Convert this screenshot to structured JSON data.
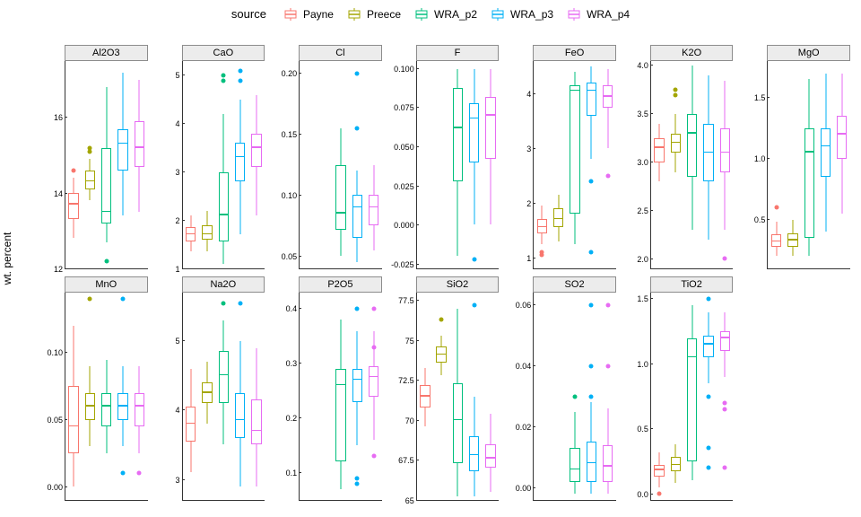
{
  "legend_title": "source",
  "y_axis_label": "wt. percent",
  "sources": [
    {
      "name": "Payne",
      "color": "#F8766D"
    },
    {
      "name": "Preece",
      "color": "#A3A500"
    },
    {
      "name": "WRA_p2",
      "color": "#00BF7D"
    },
    {
      "name": "WRA_p3",
      "color": "#00B0F6"
    },
    {
      "name": "WRA_p4",
      "color": "#E76BF3"
    }
  ],
  "panel_style": {
    "title_bg": "#ececec",
    "title_border": "#8c8c8c",
    "axis_color": "#333333",
    "title_fontsize": 11,
    "tick_fontsize": 9
  },
  "panels": [
    {
      "label": "Al2O3",
      "ylim": [
        12,
        17.5
      ],
      "yticks": [
        12,
        14,
        16
      ],
      "series": [
        {
          "src": 0,
          "q1": 13.3,
          "median": 13.7,
          "q3": 14.0,
          "lw": 12.8,
          "uw": 14.4,
          "outliers": [
            14.6
          ]
        },
        {
          "src": 1,
          "q1": 14.1,
          "median": 14.3,
          "q3": 14.6,
          "lw": 13.8,
          "uw": 14.9,
          "outliers": [
            15.1,
            15.2
          ]
        },
        {
          "src": 2,
          "q1": 13.2,
          "median": 13.5,
          "q3": 15.2,
          "lw": 12.7,
          "uw": 16.8,
          "outliers": [
            12.2
          ]
        },
        {
          "src": 3,
          "q1": 14.6,
          "median": 15.3,
          "q3": 15.7,
          "lw": 13.4,
          "uw": 17.2,
          "outliers": []
        },
        {
          "src": 4,
          "q1": 14.7,
          "median": 15.2,
          "q3": 15.9,
          "lw": 13.5,
          "uw": 17.0,
          "outliers": []
        }
      ]
    },
    {
      "label": "CaO",
      "ylim": [
        1,
        5.3
      ],
      "yticks": [
        1,
        2,
        3,
        4,
        5
      ],
      "series": [
        {
          "src": 0,
          "q1": 1.55,
          "median": 1.7,
          "q3": 1.85,
          "lw": 1.35,
          "uw": 2.1,
          "outliers": []
        },
        {
          "src": 1,
          "q1": 1.6,
          "median": 1.7,
          "q3": 1.9,
          "lw": 1.35,
          "uw": 2.2,
          "outliers": []
        },
        {
          "src": 2,
          "q1": 1.55,
          "median": 2.1,
          "q3": 3.0,
          "lw": 1.1,
          "uw": 4.2,
          "outliers": [
            4.9,
            5.0
          ]
        },
        {
          "src": 3,
          "q1": 2.8,
          "median": 3.3,
          "q3": 3.6,
          "lw": 1.7,
          "uw": 4.5,
          "outliers": [
            4.9,
            5.1
          ]
        },
        {
          "src": 4,
          "q1": 3.1,
          "median": 3.5,
          "q3": 3.8,
          "lw": 2.1,
          "uw": 4.6,
          "outliers": []
        }
      ]
    },
    {
      "label": "Cl",
      "ylim": [
        0.04,
        0.21
      ],
      "yticks": [
        0.05,
        0.1,
        0.15,
        0.2
      ],
      "series": [
        {
          "src": 0,
          "hidden": true
        },
        {
          "src": 1,
          "hidden": true
        },
        {
          "src": 2,
          "q1": 0.072,
          "median": 0.085,
          "q3": 0.125,
          "lw": 0.05,
          "uw": 0.155,
          "outliers": []
        },
        {
          "src": 3,
          "q1": 0.065,
          "median": 0.09,
          "q3": 0.1,
          "lw": 0.045,
          "uw": 0.12,
          "outliers": [
            0.155,
            0.2
          ]
        },
        {
          "src": 4,
          "q1": 0.075,
          "median": 0.09,
          "q3": 0.1,
          "lw": 0.055,
          "uw": 0.125,
          "outliers": []
        }
      ]
    },
    {
      "label": "F",
      "ylim": [
        -0.028,
        0.105
      ],
      "yticks": [
        -0.025,
        0.0,
        0.025,
        0.05,
        0.075,
        0.1
      ],
      "series": [
        {
          "src": 0,
          "hidden": true
        },
        {
          "src": 1,
          "hidden": true
        },
        {
          "src": 2,
          "q1": 0.028,
          "median": 0.062,
          "q3": 0.088,
          "lw": -0.02,
          "uw": 0.1,
          "outliers": []
        },
        {
          "src": 3,
          "q1": 0.04,
          "median": 0.068,
          "q3": 0.078,
          "lw": 0.0,
          "uw": 0.1,
          "outliers": [
            -0.022
          ]
        },
        {
          "src": 4,
          "q1": 0.042,
          "median": 0.07,
          "q3": 0.082,
          "lw": 0.0,
          "uw": 0.1,
          "outliers": []
        }
      ]
    },
    {
      "label": "FeO",
      "ylim": [
        0.8,
        4.6
      ],
      "yticks": [
        1,
        2,
        3,
        4
      ],
      "series": [
        {
          "src": 0,
          "q1": 1.45,
          "median": 1.55,
          "q3": 1.7,
          "lw": 1.25,
          "uw": 1.95,
          "outliers": [
            1.05,
            1.1
          ]
        },
        {
          "src": 1,
          "q1": 1.55,
          "median": 1.7,
          "q3": 1.9,
          "lw": 1.3,
          "uw": 2.15,
          "outliers": []
        },
        {
          "src": 2,
          "q1": 1.8,
          "median": 4.05,
          "q3": 4.15,
          "lw": 1.25,
          "uw": 4.4,
          "outliers": []
        },
        {
          "src": 3,
          "q1": 3.6,
          "median": 4.05,
          "q3": 4.2,
          "lw": 2.8,
          "uw": 4.5,
          "outliers": [
            2.4,
            1.1
          ]
        },
        {
          "src": 4,
          "q1": 3.75,
          "median": 3.95,
          "q3": 4.15,
          "lw": 3.0,
          "uw": 4.45,
          "outliers": [
            2.5
          ]
        }
      ]
    },
    {
      "label": "K2O",
      "ylim": [
        1.9,
        4.05
      ],
      "yticks": [
        2.0,
        2.5,
        3.0,
        3.5,
        4.0
      ],
      "series": [
        {
          "src": 0,
          "q1": 3.0,
          "median": 3.15,
          "q3": 3.25,
          "lw": 2.8,
          "uw": 3.4,
          "outliers": []
        },
        {
          "src": 1,
          "q1": 3.1,
          "median": 3.2,
          "q3": 3.3,
          "lw": 2.9,
          "uw": 3.5,
          "outliers": [
            3.7,
            3.75
          ]
        },
        {
          "src": 2,
          "q1": 2.85,
          "median": 3.3,
          "q3": 3.5,
          "lw": 2.3,
          "uw": 4.0,
          "outliers": []
        },
        {
          "src": 3,
          "q1": 2.8,
          "median": 3.1,
          "q3": 3.4,
          "lw": 2.2,
          "uw": 3.9,
          "outliers": []
        },
        {
          "src": 4,
          "q1": 2.9,
          "median": 3.1,
          "q3": 3.35,
          "lw": 2.3,
          "uw": 3.85,
          "outliers": [
            2.0
          ]
        }
      ]
    },
    {
      "label": "MgO",
      "ylim": [
        0.1,
        1.8
      ],
      "yticks": [
        0.5,
        1.0,
        1.5
      ],
      "series": [
        {
          "src": 0,
          "q1": 0.28,
          "median": 0.32,
          "q3": 0.38,
          "lw": 0.2,
          "uw": 0.48,
          "outliers": [
            0.6
          ]
        },
        {
          "src": 1,
          "q1": 0.28,
          "median": 0.33,
          "q3": 0.39,
          "lw": 0.2,
          "uw": 0.5,
          "outliers": []
        },
        {
          "src": 2,
          "q1": 0.35,
          "median": 1.05,
          "q3": 1.25,
          "lw": 0.2,
          "uw": 1.65,
          "outliers": []
        },
        {
          "src": 3,
          "q1": 0.85,
          "median": 1.1,
          "q3": 1.25,
          "lw": 0.4,
          "uw": 1.7,
          "outliers": []
        },
        {
          "src": 4,
          "q1": 1.0,
          "median": 1.2,
          "q3": 1.35,
          "lw": 0.55,
          "uw": 1.7,
          "outliers": []
        }
      ]
    },
    {
      "label": "MnO",
      "ylim": [
        -0.01,
        0.145
      ],
      "yticks": [
        0.0,
        0.05,
        0.1
      ],
      "series": [
        {
          "src": 0,
          "q1": 0.025,
          "median": 0.045,
          "q3": 0.075,
          "lw": 0.0,
          "uw": 0.12,
          "outliers": []
        },
        {
          "src": 1,
          "q1": 0.05,
          "median": 0.06,
          "q3": 0.07,
          "lw": 0.03,
          "uw": 0.09,
          "outliers": [
            0.14
          ]
        },
        {
          "src": 2,
          "q1": 0.045,
          "median": 0.06,
          "q3": 0.07,
          "lw": 0.025,
          "uw": 0.095,
          "outliers": []
        },
        {
          "src": 3,
          "q1": 0.05,
          "median": 0.06,
          "q3": 0.07,
          "lw": 0.03,
          "uw": 0.09,
          "outliers": [
            0.01,
            0.14
          ]
        },
        {
          "src": 4,
          "q1": 0.045,
          "median": 0.06,
          "q3": 0.07,
          "lw": 0.025,
          "uw": 0.09,
          "outliers": [
            0.01
          ]
        }
      ]
    },
    {
      "label": "Na2O",
      "ylim": [
        2.7,
        5.7
      ],
      "yticks": [
        3,
        4,
        5
      ],
      "series": [
        {
          "src": 0,
          "q1": 3.55,
          "median": 3.8,
          "q3": 4.05,
          "lw": 3.1,
          "uw": 4.6,
          "outliers": []
        },
        {
          "src": 1,
          "q1": 4.1,
          "median": 4.25,
          "q3": 4.4,
          "lw": 3.8,
          "uw": 4.7,
          "outliers": []
        },
        {
          "src": 2,
          "q1": 4.1,
          "median": 4.5,
          "q3": 4.85,
          "lw": 3.5,
          "uw": 5.3,
          "outliers": [
            5.55
          ]
        },
        {
          "src": 3,
          "q1": 3.6,
          "median": 3.85,
          "q3": 4.25,
          "lw": 2.9,
          "uw": 5.0,
          "outliers": [
            5.55
          ]
        },
        {
          "src": 4,
          "q1": 3.5,
          "median": 3.7,
          "q3": 4.15,
          "lw": 2.9,
          "uw": 4.9,
          "outliers": []
        }
      ]
    },
    {
      "label": "P2O5",
      "ylim": [
        0.05,
        0.43
      ],
      "yticks": [
        0.1,
        0.2,
        0.3,
        0.4
      ],
      "series": [
        {
          "src": 0,
          "hidden": true
        },
        {
          "src": 1,
          "hidden": true
        },
        {
          "src": 2,
          "q1": 0.12,
          "median": 0.26,
          "q3": 0.29,
          "lw": 0.07,
          "uw": 0.38,
          "outliers": []
        },
        {
          "src": 3,
          "q1": 0.23,
          "median": 0.27,
          "q3": 0.29,
          "lw": 0.15,
          "uw": 0.36,
          "outliers": [
            0.08,
            0.09,
            0.4
          ]
        },
        {
          "src": 4,
          "q1": 0.24,
          "median": 0.275,
          "q3": 0.295,
          "lw": 0.16,
          "uw": 0.36,
          "outliers": [
            0.13,
            0.33,
            0.4
          ]
        }
      ]
    },
    {
      "label": "SiO2",
      "ylim": [
        65,
        78
      ],
      "yticks": [
        65.0,
        67.5,
        70.0,
        72.5,
        75.0,
        77.5
      ],
      "series": [
        {
          "src": 0,
          "q1": 70.8,
          "median": 71.5,
          "q3": 72.2,
          "lw": 69.6,
          "uw": 73.3,
          "outliers": []
        },
        {
          "src": 1,
          "q1": 73.6,
          "median": 74.1,
          "q3": 74.6,
          "lw": 72.8,
          "uw": 75.3,
          "outliers": [
            76.3
          ]
        },
        {
          "src": 2,
          "q1": 67.3,
          "median": 70.0,
          "q3": 72.3,
          "lw": 65.2,
          "uw": 77.0,
          "outliers": []
        },
        {
          "src": 3,
          "q1": 66.8,
          "median": 67.8,
          "q3": 69.0,
          "lw": 65.2,
          "uw": 71.5,
          "outliers": [
            77.2
          ]
        },
        {
          "src": 4,
          "q1": 67.0,
          "median": 67.6,
          "q3": 68.5,
          "lw": 65.5,
          "uw": 70.4,
          "outliers": []
        }
      ]
    },
    {
      "label": "SO2",
      "ylim": [
        -0.004,
        0.064
      ],
      "yticks": [
        0.0,
        0.02,
        0.04,
        0.06
      ],
      "series": [
        {
          "src": 0,
          "hidden": true
        },
        {
          "src": 1,
          "hidden": true
        },
        {
          "src": 2,
          "q1": 0.002,
          "median": 0.006,
          "q3": 0.013,
          "lw": -0.002,
          "uw": 0.025,
          "outliers": [
            0.03
          ]
        },
        {
          "src": 3,
          "q1": 0.002,
          "median": 0.008,
          "q3": 0.015,
          "lw": -0.002,
          "uw": 0.028,
          "outliers": [
            0.03,
            0.04,
            0.06
          ]
        },
        {
          "src": 4,
          "q1": 0.002,
          "median": 0.007,
          "q3": 0.014,
          "lw": -0.002,
          "uw": 0.026,
          "outliers": [
            0.04,
            0.06
          ]
        }
      ]
    },
    {
      "label": "TiO2",
      "ylim": [
        -0.05,
        1.55
      ],
      "yticks": [
        0.0,
        0.5,
        1.0,
        1.5
      ],
      "series": [
        {
          "src": 0,
          "q1": 0.13,
          "median": 0.18,
          "q3": 0.22,
          "lw": 0.05,
          "uw": 0.32,
          "outliers": [
            0.0
          ]
        },
        {
          "src": 1,
          "q1": 0.17,
          "median": 0.22,
          "q3": 0.28,
          "lw": 0.08,
          "uw": 0.38,
          "outliers": []
        },
        {
          "src": 2,
          "q1": 0.25,
          "median": 1.05,
          "q3": 1.2,
          "lw": 0.1,
          "uw": 1.45,
          "outliers": []
        },
        {
          "src": 3,
          "q1": 1.05,
          "median": 1.15,
          "q3": 1.22,
          "lw": 0.85,
          "uw": 1.4,
          "outliers": [
            0.2,
            0.35,
            0.75,
            1.5
          ]
        },
        {
          "src": 4,
          "q1": 1.1,
          "median": 1.2,
          "q3": 1.25,
          "lw": 0.9,
          "uw": 1.4,
          "outliers": [
            0.2,
            0.65,
            0.7
          ]
        }
      ]
    }
  ]
}
